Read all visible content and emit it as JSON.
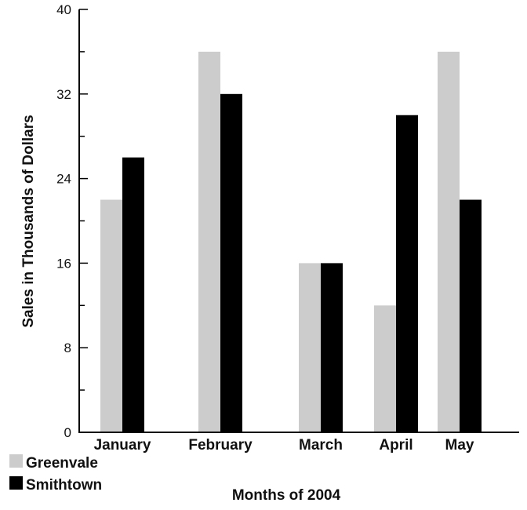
{
  "chart_data": {
    "type": "bar",
    "xlabel": "Months of 2004",
    "ylabel": "Sales in Thousands of Dollars",
    "categories": [
      "January",
      "February",
      "March",
      "April",
      "May"
    ],
    "series": [
      {
        "name": "Greenvale",
        "color": "#cccccc",
        "values": [
          22,
          36,
          16,
          12,
          36
        ]
      },
      {
        "name": "Smithtown",
        "color": "#000000",
        "values": [
          26,
          32,
          16,
          30,
          22
        ]
      }
    ],
    "ylim": [
      0,
      40
    ],
    "yticks": [
      "0",
      "8",
      "16",
      "24",
      "32",
      "40"
    ],
    "grid": false,
    "legend": "bottom-left"
  }
}
